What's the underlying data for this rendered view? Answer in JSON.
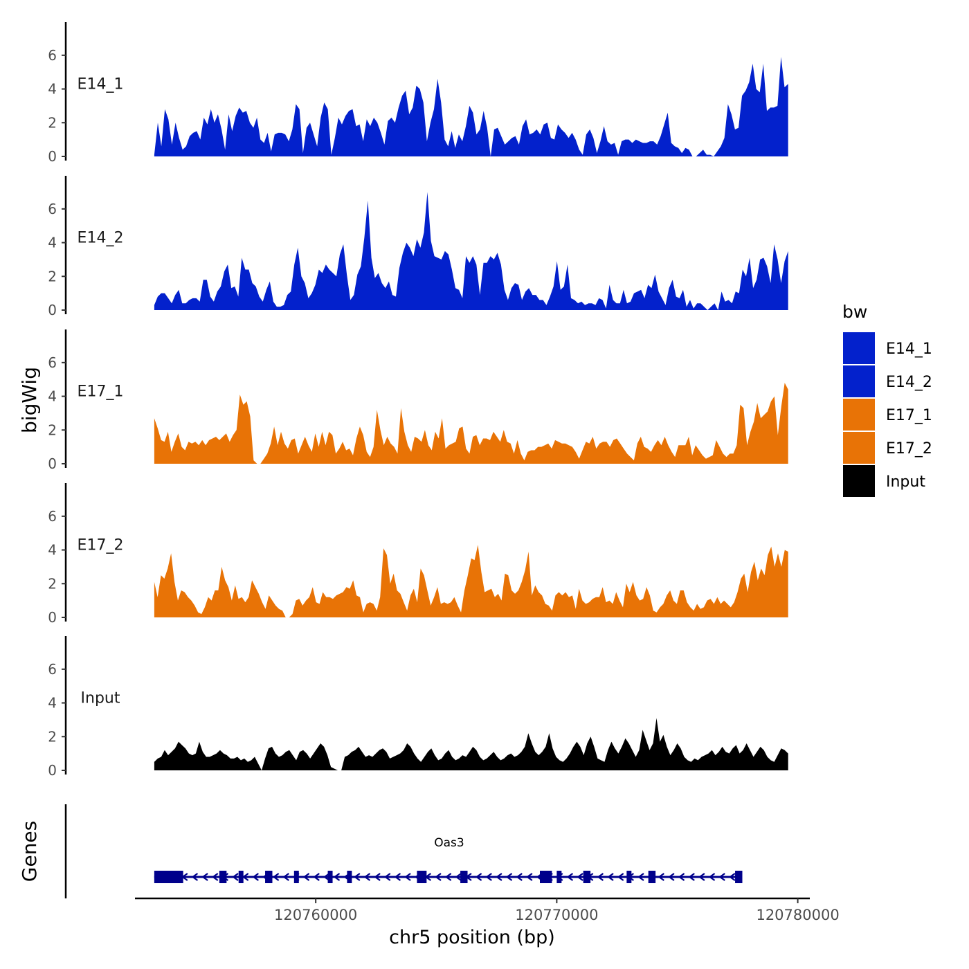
{
  "chart_data": {
    "type": "area",
    "ylabel": "bigWig",
    "xlabel": "chr5 position (bp)",
    "xlim": [
      120752500,
      120780500
    ],
    "ylim": [
      0,
      7.8
    ],
    "yticks": [
      0,
      2,
      4,
      6
    ],
    "xticks": [
      120760000,
      120770000,
      120780000
    ],
    "legend": {
      "title": "bw",
      "placement": "right",
      "entries": [
        {
          "label": "E14_1",
          "color": "#0321cc"
        },
        {
          "label": "E14_2",
          "color": "#0321cc"
        },
        {
          "label": "E17_1",
          "color": "#e87306"
        },
        {
          "label": "E17_2",
          "color": "#e87306"
        },
        {
          "label": "Input",
          "color": "#000000"
        }
      ]
    },
    "tracks": [
      {
        "name": "E14_1",
        "color": "#0321cc",
        "x_start": 120753300,
        "x_end": 120779600,
        "values": [
          0.1,
          2.0,
          0.6,
          2.8,
          2.2,
          0.7,
          2.0,
          1.1,
          0.4,
          0.6,
          1.2,
          1.4,
          1.5,
          1.0,
          2.3,
          1.9,
          2.8,
          2.0,
          2.5,
          1.6,
          0.4,
          2.5,
          1.5,
          2.4,
          2.9,
          2.6,
          2.7,
          2.0,
          1.7,
          2.3,
          1.0,
          0.8,
          1.4,
          0.3,
          1.3,
          1.4,
          1.4,
          1.3,
          0.9,
          1.6,
          3.1,
          2.8,
          0.2,
          1.7,
          2.0,
          1.3,
          0.6,
          2.3,
          3.2,
          2.8,
          0.1,
          1.1,
          2.3,
          1.9,
          2.4,
          2.7,
          2.8,
          1.8,
          1.9,
          0.9,
          2.2,
          1.8,
          2.3,
          2.0,
          1.4,
          0.7,
          2.1,
          2.3,
          2.0,
          2.9,
          3.6,
          3.9,
          2.5,
          2.9,
          4.2,
          4.0,
          3.2,
          0.9,
          2.0,
          2.8,
          4.6,
          3.2,
          1.0,
          0.6,
          1.5,
          0.5,
          1.3,
          0.9,
          1.8,
          3.0,
          2.6,
          1.3,
          1.6,
          2.7,
          1.7,
          0.0,
          1.6,
          1.7,
          1.2,
          0.7,
          0.9,
          1.1,
          1.2,
          0.7,
          1.8,
          2.2,
          1.3,
          1.4,
          1.6,
          1.3,
          1.9,
          2.0,
          1.1,
          1.0,
          1.9,
          1.6,
          1.4,
          1.1,
          1.4,
          1.0,
          0.4,
          0.1,
          1.3,
          1.6,
          1.1,
          0.2,
          0.9,
          1.8,
          0.9,
          0.7,
          0.8,
          0.1,
          0.9,
          1.0,
          1.0,
          0.8,
          1.0,
          0.9,
          0.8,
          0.8,
          0.9,
          0.9,
          0.7,
          1.2,
          1.9,
          2.6,
          0.8,
          0.6,
          0.5,
          0.2,
          0.5,
          0.4,
          0.0,
          0.0,
          0.2,
          0.4,
          0.1,
          0.1,
          0.0,
          0.3,
          0.6,
          1.1,
          3.1,
          2.5,
          1.6,
          1.7,
          3.6,
          3.9,
          4.4,
          5.5,
          4.0,
          3.8,
          5.5,
          2.7,
          2.9,
          2.9,
          3.0,
          5.9,
          4.1,
          4.3
        ]
      },
      {
        "name": "E14_2",
        "color": "#0321cc",
        "x_start": 120753300,
        "x_end": 120779600,
        "values": [
          0.3,
          0.8,
          1.0,
          1.0,
          0.7,
          0.4,
          0.9,
          1.2,
          0.4,
          0.4,
          0.6,
          0.7,
          0.7,
          0.5,
          1.8,
          1.8,
          0.8,
          0.5,
          1.1,
          1.4,
          2.3,
          2.7,
          1.3,
          1.4,
          0.8,
          3.1,
          2.4,
          2.4,
          1.6,
          1.4,
          0.8,
          0.5,
          1.2,
          1.7,
          0.5,
          0.2,
          0.2,
          0.3,
          0.9,
          1.1,
          2.7,
          3.7,
          2.0,
          1.6,
          0.7,
          1.0,
          1.5,
          2.4,
          2.2,
          2.7,
          2.4,
          2.2,
          2.0,
          3.3,
          3.9,
          2.1,
          0.6,
          0.9,
          2.1,
          2.6,
          4.3,
          6.5,
          3.1,
          1.9,
          2.2,
          1.6,
          1.3,
          1.7,
          0.9,
          0.8,
          2.5,
          3.4,
          4.0,
          3.7,
          3.2,
          4.2,
          3.7,
          4.6,
          7.0,
          4.1,
          3.2,
          3.1,
          3.0,
          3.5,
          3.3,
          2.4,
          1.3,
          1.2,
          0.7,
          3.2,
          2.8,
          3.2,
          2.7,
          0.9,
          2.8,
          2.8,
          3.2,
          3.0,
          3.4,
          2.7,
          1.2,
          0.6,
          1.3,
          1.6,
          1.5,
          0.6,
          1.1,
          1.3,
          0.9,
          0.9,
          0.6,
          0.6,
          0.3,
          0.8,
          1.4,
          2.9,
          1.2,
          1.4,
          2.7,
          0.7,
          0.6,
          0.4,
          0.5,
          0.3,
          0.4,
          0.4,
          0.3,
          0.7,
          0.6,
          0.1,
          1.5,
          0.6,
          0.4,
          0.4,
          1.2,
          0.4,
          0.5,
          1.0,
          1.1,
          1.2,
          0.7,
          1.5,
          1.3,
          2.1,
          1.1,
          0.7,
          0.3,
          1.3,
          1.8,
          0.8,
          0.7,
          1.2,
          0.2,
          0.6,
          0.1,
          0.4,
          0.4,
          0.2,
          0.0,
          0.2,
          0.4,
          0.0,
          1.1,
          0.5,
          0.6,
          0.4,
          1.1,
          1.0,
          2.4,
          2.0,
          3.1,
          1.3,
          1.8,
          3.0,
          3.1,
          2.6,
          1.6,
          3.9,
          3.0,
          1.6,
          2.9,
          3.5
        ]
      },
      {
        "name": "E17_1",
        "color": "#e87306",
        "x_start": 120753300,
        "x_end": 120779600,
        "values": [
          2.7,
          2.1,
          1.4,
          1.3,
          1.9,
          0.7,
          1.3,
          1.8,
          1.0,
          0.8,
          1.3,
          1.2,
          1.3,
          1.1,
          1.4,
          1.1,
          1.4,
          1.5,
          1.6,
          1.4,
          1.6,
          1.8,
          1.3,
          1.7,
          2.0,
          4.1,
          3.5,
          3.7,
          2.8,
          0.2,
          0.0,
          0.0,
          0.3,
          0.6,
          1.2,
          2.2,
          1.1,
          1.9,
          1.2,
          0.9,
          1.4,
          1.5,
          0.6,
          1.1,
          1.6,
          1.1,
          0.7,
          1.8,
          1.0,
          1.9,
          1.1,
          1.9,
          1.7,
          0.6,
          0.9,
          1.3,
          0.8,
          0.9,
          0.5,
          1.5,
          2.2,
          1.7,
          0.7,
          0.4,
          1.0,
          3.2,
          2.0,
          1.1,
          1.6,
          1.2,
          1.0,
          0.6,
          3.3,
          1.9,
          1.1,
          0.7,
          1.6,
          1.5,
          1.3,
          2.0,
          1.1,
          0.8,
          1.9,
          1.5,
          2.7,
          0.9,
          1.1,
          1.2,
          1.3,
          2.1,
          2.2,
          0.9,
          0.6,
          1.6,
          1.7,
          1.1,
          1.5,
          1.5,
          1.4,
          1.9,
          1.6,
          1.3,
          2.0,
          1.3,
          1.2,
          0.6,
          1.4,
          0.6,
          0.2,
          0.7,
          0.8,
          0.8,
          1.0,
          1.0,
          1.1,
          1.2,
          0.9,
          1.4,
          1.3,
          1.2,
          1.2,
          1.1,
          1.0,
          0.7,
          0.3,
          0.8,
          1.3,
          1.2,
          1.6,
          0.9,
          1.2,
          1.3,
          1.3,
          1.0,
          1.4,
          1.5,
          1.2,
          0.9,
          0.6,
          0.4,
          0.2,
          1.2,
          1.6,
          1.0,
          0.9,
          0.7,
          1.1,
          1.4,
          1.1,
          1.6,
          1.1,
          0.7,
          0.4,
          1.1,
          1.1,
          1.1,
          1.6,
          0.5,
          1.1,
          0.8,
          0.5,
          0.3,
          0.4,
          0.5,
          1.4,
          1.0,
          0.6,
          0.4,
          0.6,
          0.6,
          1.1,
          3.5,
          3.3,
          1.1,
          1.9,
          2.5,
          3.6,
          2.7,
          2.9,
          3.1,
          3.7,
          4.0,
          1.7,
          3.4,
          4.8,
          4.4
        ]
      },
      {
        "name": "E17_2",
        "color": "#e87306",
        "x_start": 120753300,
        "x_end": 120779600,
        "values": [
          2.1,
          1.2,
          2.5,
          2.3,
          2.9,
          3.8,
          2.1,
          1.0,
          1.6,
          1.5,
          1.2,
          1.0,
          0.7,
          0.3,
          0.2,
          0.6,
          1.2,
          1.0,
          1.6,
          1.6,
          3.0,
          2.2,
          1.8,
          1.0,
          1.9,
          1.1,
          1.2,
          0.9,
          1.2,
          2.2,
          1.8,
          1.4,
          0.9,
          0.5,
          1.3,
          1.0,
          0.7,
          0.5,
          0.4,
          0.0,
          0.0,
          0.2,
          1.0,
          1.1,
          0.7,
          1.0,
          1.2,
          1.8,
          0.9,
          0.8,
          1.5,
          1.2,
          1.2,
          1.1,
          1.3,
          1.4,
          1.5,
          1.8,
          1.7,
          2.2,
          1.3,
          1.2,
          0.3,
          0.8,
          0.9,
          0.8,
          0.4,
          1.2,
          4.1,
          3.7,
          2.0,
          2.6,
          1.6,
          1.4,
          0.9,
          0.4,
          1.3,
          1.7,
          0.9,
          2.9,
          2.5,
          1.6,
          0.7,
          1.2,
          1.8,
          0.8,
          0.9,
          0.8,
          0.9,
          1.2,
          0.7,
          0.3,
          1.6,
          2.5,
          3.5,
          3.4,
          4.3,
          2.7,
          1.5,
          1.6,
          1.7,
          1.2,
          1.4,
          1.0,
          2.6,
          2.5,
          1.6,
          1.4,
          1.6,
          2.1,
          2.8,
          3.9,
          1.3,
          1.9,
          1.5,
          1.3,
          0.8,
          0.7,
          0.4,
          1.3,
          1.5,
          1.3,
          1.5,
          1.2,
          1.3,
          0.5,
          1.7,
          1.0,
          0.8,
          0.9,
          1.1,
          1.2,
          1.2,
          1.8,
          0.9,
          1.0,
          0.8,
          1.5,
          1.0,
          0.6,
          2.0,
          1.5,
          2.1,
          1.3,
          1.0,
          1.1,
          1.8,
          1.3,
          0.4,
          0.3,
          0.6,
          0.8,
          1.3,
          1.6,
          1.0,
          0.8,
          1.6,
          1.6,
          0.9,
          0.6,
          0.4,
          0.8,
          0.5,
          0.6,
          1.0,
          1.1,
          0.8,
          1.2,
          0.8,
          1.0,
          0.8,
          0.6,
          0.9,
          1.5,
          2.3,
          2.6,
          1.5,
          2.7,
          3.3,
          2.2,
          2.9,
          2.5,
          3.7,
          4.2,
          3.0,
          3.8,
          3.0,
          4.0,
          3.9
        ]
      },
      {
        "name": "Input",
        "color": "#000000",
        "x_start": 120753300,
        "x_end": 120779600,
        "values": [
          0.5,
          0.7,
          0.8,
          1.2,
          0.9,
          1.1,
          1.3,
          1.7,
          1.5,
          1.3,
          1.0,
          0.9,
          1.0,
          1.7,
          1.1,
          0.8,
          0.8,
          0.9,
          1.0,
          1.2,
          1.0,
          0.9,
          0.7,
          0.7,
          0.8,
          0.6,
          0.7,
          0.5,
          0.6,
          0.8,
          0.4,
          0.0,
          0.7,
          1.3,
          1.4,
          1.0,
          0.8,
          0.9,
          1.1,
          1.2,
          0.9,
          0.6,
          1.1,
          1.2,
          1.0,
          0.7,
          1.0,
          1.3,
          1.6,
          1.4,
          0.9,
          0.2,
          0.1,
          0.0,
          0.0,
          0.8,
          0.9,
          1.1,
          1.2,
          1.4,
          1.1,
          0.8,
          0.9,
          0.8,
          1.0,
          1.2,
          1.3,
          1.1,
          0.7,
          0.8,
          0.9,
          1.0,
          1.2,
          1.6,
          1.4,
          1.0,
          0.7,
          0.5,
          0.8,
          1.1,
          1.3,
          0.9,
          0.6,
          0.7,
          1.0,
          1.2,
          0.8,
          0.6,
          0.7,
          0.9,
          0.8,
          1.1,
          1.4,
          1.2,
          0.8,
          0.6,
          0.7,
          0.9,
          1.1,
          0.8,
          0.6,
          0.7,
          0.9,
          1.0,
          0.8,
          0.9,
          1.1,
          1.4,
          2.2,
          1.6,
          1.1,
          0.9,
          1.1,
          1.4,
          2.2,
          1.3,
          0.8,
          0.6,
          0.5,
          0.7,
          1.0,
          1.4,
          1.7,
          1.4,
          0.9,
          1.6,
          2.0,
          1.4,
          0.7,
          0.6,
          0.5,
          1.2,
          1.7,
          1.3,
          1.0,
          1.4,
          1.9,
          1.6,
          1.2,
          0.8,
          1.2,
          2.4,
          1.8,
          1.2,
          1.6,
          3.1,
          1.7,
          2.1,
          1.4,
          0.9,
          1.2,
          1.6,
          1.3,
          0.8,
          0.6,
          0.5,
          0.7,
          0.6,
          0.8,
          0.9,
          1.0,
          1.2,
          0.9,
          1.1,
          1.4,
          1.1,
          1.0,
          1.3,
          1.5,
          1.0,
          1.2,
          1.6,
          1.2,
          0.8,
          1.1,
          1.4,
          1.2,
          0.8,
          0.6,
          0.5,
          0.9,
          1.3,
          1.2,
          1.0
        ]
      }
    ],
    "genes": {
      "label": "Genes",
      "name": "Oas3",
      "strand": "-",
      "start": 120753300,
      "end": 120777700,
      "color": "#00008b",
      "exons": [
        [
          120753300,
          120754500
        ],
        [
          120756000,
          120756300
        ],
        [
          120756800,
          120757000
        ],
        [
          120757900,
          120758200
        ],
        [
          120759100,
          120759300
        ],
        [
          120760500,
          120760700
        ],
        [
          120761300,
          120761500
        ],
        [
          120764200,
          120764600
        ],
        [
          120766000,
          120766300
        ],
        [
          120769300,
          120769800
        ],
        [
          120770000,
          120770200
        ],
        [
          120771100,
          120771400
        ],
        [
          120772900,
          120773100
        ],
        [
          120773800,
          120774100
        ],
        [
          120777400,
          120777700
        ]
      ]
    }
  }
}
